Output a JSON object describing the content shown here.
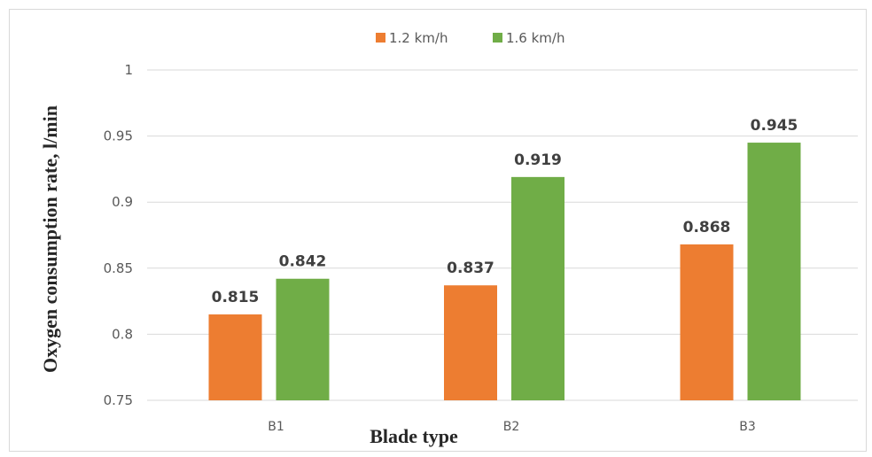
{
  "chart_data": {
    "type": "bar",
    "categories": [
      "B1",
      "B2",
      "B3"
    ],
    "series": [
      {
        "name": "1.2 km/h",
        "color": "#ED7D31",
        "values": [
          0.815,
          0.837,
          0.868
        ]
      },
      {
        "name": "1.6 km/h",
        "color": "#70AD47",
        "values": [
          0.842,
          0.919,
          0.945
        ]
      }
    ],
    "value_labels": [
      [
        "0.815",
        "0.837",
        "0.868"
      ],
      [
        "0.842",
        "0.919",
        "0.945"
      ]
    ],
    "xlabel": "Blade type",
    "ylabel": "Oxygen consumption rate, l/min",
    "ylim": [
      0.75,
      1
    ],
    "yticks": [
      "0.75",
      "0.8",
      "0.85",
      "0.9",
      "0.95",
      "1"
    ],
    "grid": true,
    "gridline_color": "#d9d9d9",
    "legend_position": "top-center"
  }
}
